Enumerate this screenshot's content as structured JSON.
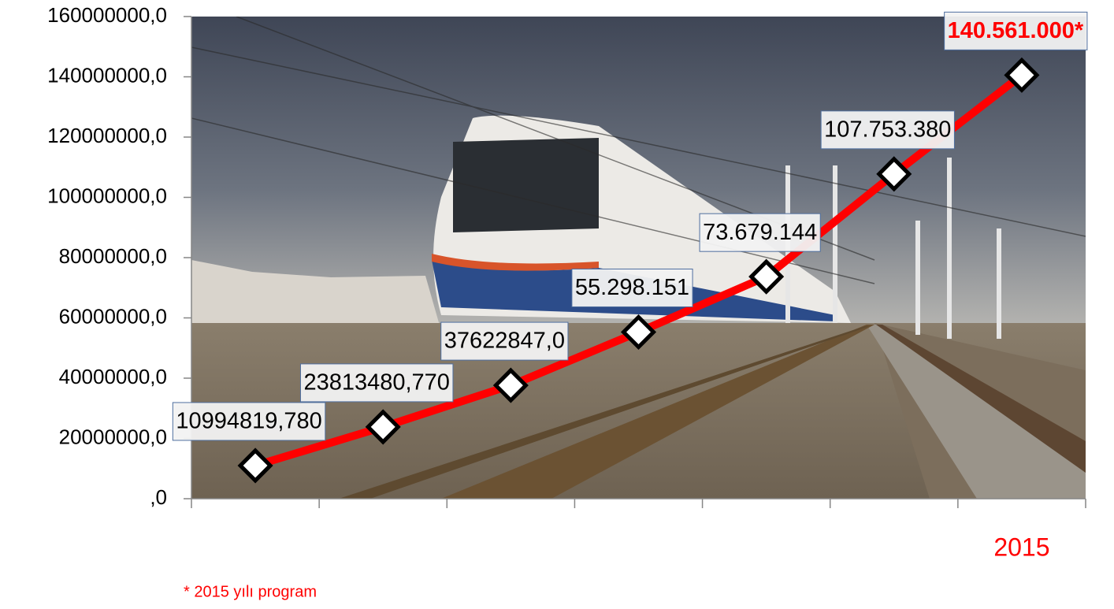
{
  "chart_data": {
    "type": "line",
    "categories": [
      null,
      null,
      null,
      null,
      null,
      null,
      "2015"
    ],
    "series": [
      {
        "color": "#ff0000",
        "values": [
          10994819.78,
          23813480.77,
          37622847.0,
          55298151,
          73679144,
          107753380,
          140561000
        ],
        "value_labels": [
          "10994819,780",
          "23813480,770",
          "37622847,0",
          "55.298.151",
          "73.679.144",
          "107.753.380",
          "140.561.000*"
        ]
      }
    ],
    "ylim": [
      0,
      160000000
    ],
    "yticks": [
      {
        "value": 0,
        "label": ",0"
      },
      {
        "value": 20000000,
        "label": "20000000,0"
      },
      {
        "value": 40000000,
        "label": "40000000,0"
      },
      {
        "value": 60000000,
        "label": "60000000,0"
      },
      {
        "value": 80000000,
        "label": "80000000,0"
      },
      {
        "value": 100000000,
        "label": "100000000,0"
      },
      {
        "value": 120000000,
        "label": "120000000,0"
      },
      {
        "value": 140000000,
        "label": "140000000,0"
      },
      {
        "value": 160000000,
        "label": "160000000,0"
      }
    ],
    "highlight_color": "#ff0000",
    "note": "* 2015 yılı program"
  }
}
